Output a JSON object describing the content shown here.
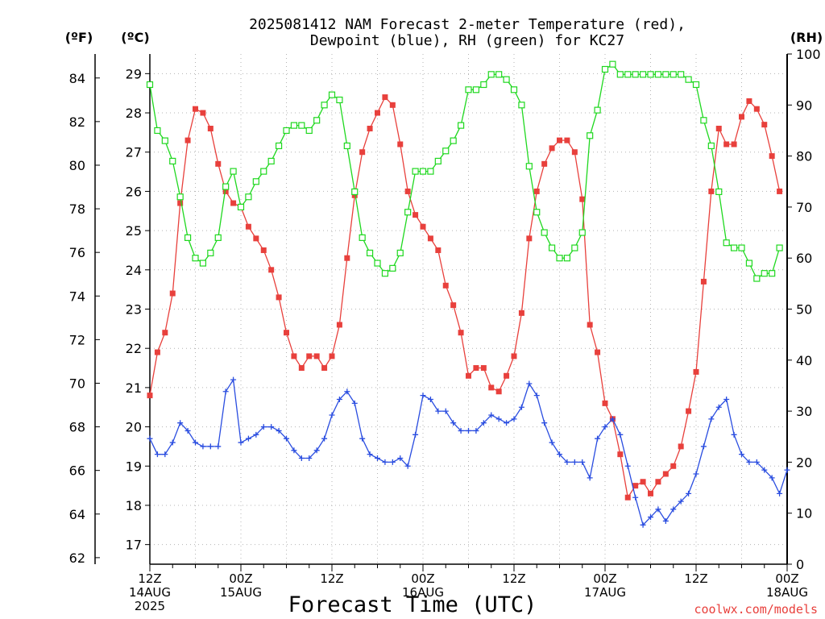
{
  "chart_data": {
    "type": "line",
    "title_lines": [
      "2025081412 NAM Forecast 2-meter Temperature (red),",
      "Dewpoint (blue), RH (green) for KC27"
    ],
    "xlabel": "Forecast Time (UTC)",
    "credit": "coolwx.com/models",
    "unit_left_outer": "(ºF)",
    "unit_left_inner": "(ºC)",
    "unit_right": "(RH)",
    "x_hours_range": [
      0,
      84
    ],
    "x_ticks": [
      {
        "hour": 0,
        "lines": [
          "12Z",
          "14AUG",
          "2025"
        ]
      },
      {
        "hour": 12,
        "lines": [
          "00Z",
          "15AUG"
        ]
      },
      {
        "hour": 24,
        "lines": [
          "12Z"
        ]
      },
      {
        "hour": 36,
        "lines": [
          "00Z",
          "16AUG"
        ]
      },
      {
        "hour": 48,
        "lines": [
          "12Z"
        ]
      },
      {
        "hour": 60,
        "lines": [
          "00Z",
          "17AUG"
        ]
      },
      {
        "hour": 72,
        "lines": [
          "12Z"
        ]
      },
      {
        "hour": 84,
        "lines": [
          "00Z",
          "18AUG"
        ]
      }
    ],
    "celsius_ticks": [
      17,
      18,
      19,
      20,
      21,
      22,
      23,
      24,
      25,
      26,
      27,
      28,
      29
    ],
    "celsius_range": [
      16.5,
      29.5
    ],
    "fahrenheit_ticks": [
      62,
      64,
      66,
      68,
      70,
      72,
      74,
      76,
      78,
      80,
      82,
      84
    ],
    "rh_ticks": [
      0,
      10,
      20,
      30,
      40,
      50,
      60,
      70,
      80,
      90,
      100
    ],
    "rh_range": [
      0,
      100
    ],
    "series": [
      {
        "name": "Temperature",
        "unit": "C",
        "color": "#e8403c",
        "marker": "filled-square",
        "points": [
          [
            0,
            20.8
          ],
          [
            1,
            21.9
          ],
          [
            2,
            22.4
          ],
          [
            3,
            23.4
          ],
          [
            4,
            25.7
          ],
          [
            5,
            27.3
          ],
          [
            6,
            28.1
          ],
          [
            7,
            28.0
          ],
          [
            8,
            27.6
          ],
          [
            9,
            26.7
          ],
          [
            10,
            26.0
          ],
          [
            11,
            25.7
          ],
          [
            12,
            25.6
          ],
          [
            13,
            25.1
          ],
          [
            14,
            24.8
          ],
          [
            15,
            24.5
          ],
          [
            16,
            24.0
          ],
          [
            17,
            23.3
          ],
          [
            18,
            22.4
          ],
          [
            19,
            21.8
          ],
          [
            20,
            21.5
          ],
          [
            21,
            21.8
          ],
          [
            22,
            21.8
          ],
          [
            23,
            21.5
          ],
          [
            24,
            21.8
          ],
          [
            25,
            22.6
          ],
          [
            26,
            24.3
          ],
          [
            27,
            25.9
          ],
          [
            28,
            27.0
          ],
          [
            29,
            27.6
          ],
          [
            30,
            28.0
          ],
          [
            31,
            28.4
          ],
          [
            32,
            28.2
          ],
          [
            33,
            27.2
          ],
          [
            34,
            26.0
          ],
          [
            35,
            25.4
          ],
          [
            36,
            25.1
          ],
          [
            37,
            24.8
          ],
          [
            38,
            24.5
          ],
          [
            39,
            23.6
          ],
          [
            40,
            23.1
          ],
          [
            41,
            22.4
          ],
          [
            42,
            21.3
          ],
          [
            43,
            21.5
          ],
          [
            44,
            21.5
          ],
          [
            45,
            21.0
          ],
          [
            46,
            20.9
          ],
          [
            47,
            21.3
          ],
          [
            48,
            21.8
          ],
          [
            49,
            22.9
          ],
          [
            50,
            24.8
          ],
          [
            51,
            26.0
          ],
          [
            52,
            26.7
          ],
          [
            53,
            27.1
          ],
          [
            54,
            27.3
          ],
          [
            55,
            27.3
          ],
          [
            56,
            27.0
          ],
          [
            57,
            25.8
          ],
          [
            58,
            22.6
          ],
          [
            59,
            21.9
          ],
          [
            60,
            20.6
          ],
          [
            61,
            20.2
          ],
          [
            62,
            19.3
          ],
          [
            63,
            18.2
          ],
          [
            64,
            18.5
          ],
          [
            65,
            18.6
          ],
          [
            66,
            18.3
          ],
          [
            67,
            18.6
          ],
          [
            68,
            18.8
          ],
          [
            69,
            19.0
          ],
          [
            70,
            19.5
          ],
          [
            71,
            20.4
          ],
          [
            72,
            21.4
          ],
          [
            73,
            23.7
          ],
          [
            74,
            26.0
          ],
          [
            75,
            27.6
          ],
          [
            76,
            27.2
          ],
          [
            77,
            27.2
          ],
          [
            78,
            27.9
          ],
          [
            79,
            28.3
          ],
          [
            80,
            28.1
          ],
          [
            81,
            27.7
          ],
          [
            82,
            26.9
          ],
          [
            83,
            26.0
          ]
        ]
      },
      {
        "name": "Dewpoint",
        "unit": "C",
        "color": "#2a4de0",
        "marker": "plus",
        "points": [
          [
            0,
            19.7
          ],
          [
            1,
            19.3
          ],
          [
            2,
            19.3
          ],
          [
            3,
            19.6
          ],
          [
            4,
            20.1
          ],
          [
            5,
            19.9
          ],
          [
            6,
            19.6
          ],
          [
            7,
            19.5
          ],
          [
            8,
            19.5
          ],
          [
            9,
            19.5
          ],
          [
            10,
            20.9
          ],
          [
            11,
            21.2
          ],
          [
            12,
            19.6
          ],
          [
            13,
            19.7
          ],
          [
            14,
            19.8
          ],
          [
            15,
            20.0
          ],
          [
            16,
            20.0
          ],
          [
            17,
            19.9
          ],
          [
            18,
            19.7
          ],
          [
            19,
            19.4
          ],
          [
            20,
            19.2
          ],
          [
            21,
            19.2
          ],
          [
            22,
            19.4
          ],
          [
            23,
            19.7
          ],
          [
            24,
            20.3
          ],
          [
            25,
            20.7
          ],
          [
            26,
            20.9
          ],
          [
            27,
            20.6
          ],
          [
            28,
            19.7
          ],
          [
            29,
            19.3
          ],
          [
            30,
            19.2
          ],
          [
            31,
            19.1
          ],
          [
            32,
            19.1
          ],
          [
            33,
            19.2
          ],
          [
            34,
            19.0
          ],
          [
            35,
            19.8
          ],
          [
            36,
            20.8
          ],
          [
            37,
            20.7
          ],
          [
            38,
            20.4
          ],
          [
            39,
            20.4
          ],
          [
            40,
            20.1
          ],
          [
            41,
            19.9
          ],
          [
            42,
            19.9
          ],
          [
            43,
            19.9
          ],
          [
            44,
            20.1
          ],
          [
            45,
            20.3
          ],
          [
            46,
            20.2
          ],
          [
            47,
            20.1
          ],
          [
            48,
            20.2
          ],
          [
            49,
            20.5
          ],
          [
            50,
            21.1
          ],
          [
            51,
            20.8
          ],
          [
            52,
            20.1
          ],
          [
            53,
            19.6
          ],
          [
            54,
            19.3
          ],
          [
            55,
            19.1
          ],
          [
            56,
            19.1
          ],
          [
            57,
            19.1
          ],
          [
            58,
            18.7
          ],
          [
            59,
            19.7
          ],
          [
            60,
            20.0
          ],
          [
            61,
            20.2
          ],
          [
            62,
            19.8
          ],
          [
            63,
            19.0
          ],
          [
            64,
            18.2
          ],
          [
            65,
            17.5
          ],
          [
            66,
            17.7
          ],
          [
            67,
            17.9
          ],
          [
            68,
            17.6
          ],
          [
            69,
            17.9
          ],
          [
            70,
            18.1
          ],
          [
            71,
            18.3
          ],
          [
            72,
            18.8
          ],
          [
            73,
            19.5
          ],
          [
            74,
            20.2
          ],
          [
            75,
            20.5
          ],
          [
            76,
            20.7
          ],
          [
            77,
            19.8
          ],
          [
            78,
            19.3
          ],
          [
            79,
            19.1
          ],
          [
            80,
            19.1
          ],
          [
            81,
            18.9
          ],
          [
            82,
            18.7
          ],
          [
            83,
            18.3
          ],
          [
            84,
            18.9
          ]
        ]
      },
      {
        "name": "RH",
        "unit": "%",
        "color": "#1fd81f",
        "marker": "open-square",
        "points": [
          [
            0,
            94
          ],
          [
            1,
            85
          ],
          [
            2,
            83
          ],
          [
            3,
            79
          ],
          [
            4,
            72
          ],
          [
            5,
            64
          ],
          [
            6,
            60
          ],
          [
            7,
            59
          ],
          [
            8,
            61
          ],
          [
            9,
            64
          ],
          [
            10,
            74
          ],
          [
            11,
            77
          ],
          [
            12,
            70
          ],
          [
            13,
            72
          ],
          [
            14,
            75
          ],
          [
            15,
            77
          ],
          [
            16,
            79
          ],
          [
            17,
            82
          ],
          [
            18,
            85
          ],
          [
            19,
            86
          ],
          [
            20,
            86
          ],
          [
            21,
            85
          ],
          [
            22,
            87
          ],
          [
            23,
            90
          ],
          [
            24,
            92
          ],
          [
            25,
            91
          ],
          [
            26,
            82
          ],
          [
            27,
            73
          ],
          [
            28,
            64
          ],
          [
            29,
            61
          ],
          [
            30,
            59
          ],
          [
            31,
            57
          ],
          [
            32,
            58
          ],
          [
            33,
            61
          ],
          [
            34,
            69
          ],
          [
            35,
            77
          ],
          [
            36,
            77
          ],
          [
            37,
            77
          ],
          [
            38,
            79
          ],
          [
            39,
            81
          ],
          [
            40,
            83
          ],
          [
            41,
            86
          ],
          [
            42,
            93
          ],
          [
            43,
            93
          ],
          [
            44,
            94
          ],
          [
            45,
            96
          ],
          [
            46,
            96
          ],
          [
            47,
            95
          ],
          [
            48,
            93
          ],
          [
            49,
            90
          ],
          [
            50,
            78
          ],
          [
            51,
            69
          ],
          [
            52,
            65
          ],
          [
            53,
            62
          ],
          [
            54,
            60
          ],
          [
            55,
            60
          ],
          [
            56,
            62
          ],
          [
            57,
            65
          ],
          [
            58,
            84
          ],
          [
            59,
            89
          ],
          [
            60,
            97
          ],
          [
            61,
            98
          ],
          [
            62,
            96
          ],
          [
            63,
            96
          ],
          [
            64,
            96
          ],
          [
            65,
            96
          ],
          [
            66,
            96
          ],
          [
            67,
            96
          ],
          [
            68,
            96
          ],
          [
            69,
            96
          ],
          [
            70,
            96
          ],
          [
            71,
            95
          ],
          [
            72,
            94
          ],
          [
            73,
            87
          ],
          [
            74,
            82
          ],
          [
            75,
            73
          ],
          [
            76,
            63
          ],
          [
            77,
            62
          ],
          [
            78,
            62
          ],
          [
            79,
            59
          ],
          [
            80,
            56
          ],
          [
            81,
            57
          ],
          [
            82,
            57
          ],
          [
            83,
            62
          ]
        ]
      }
    ]
  }
}
